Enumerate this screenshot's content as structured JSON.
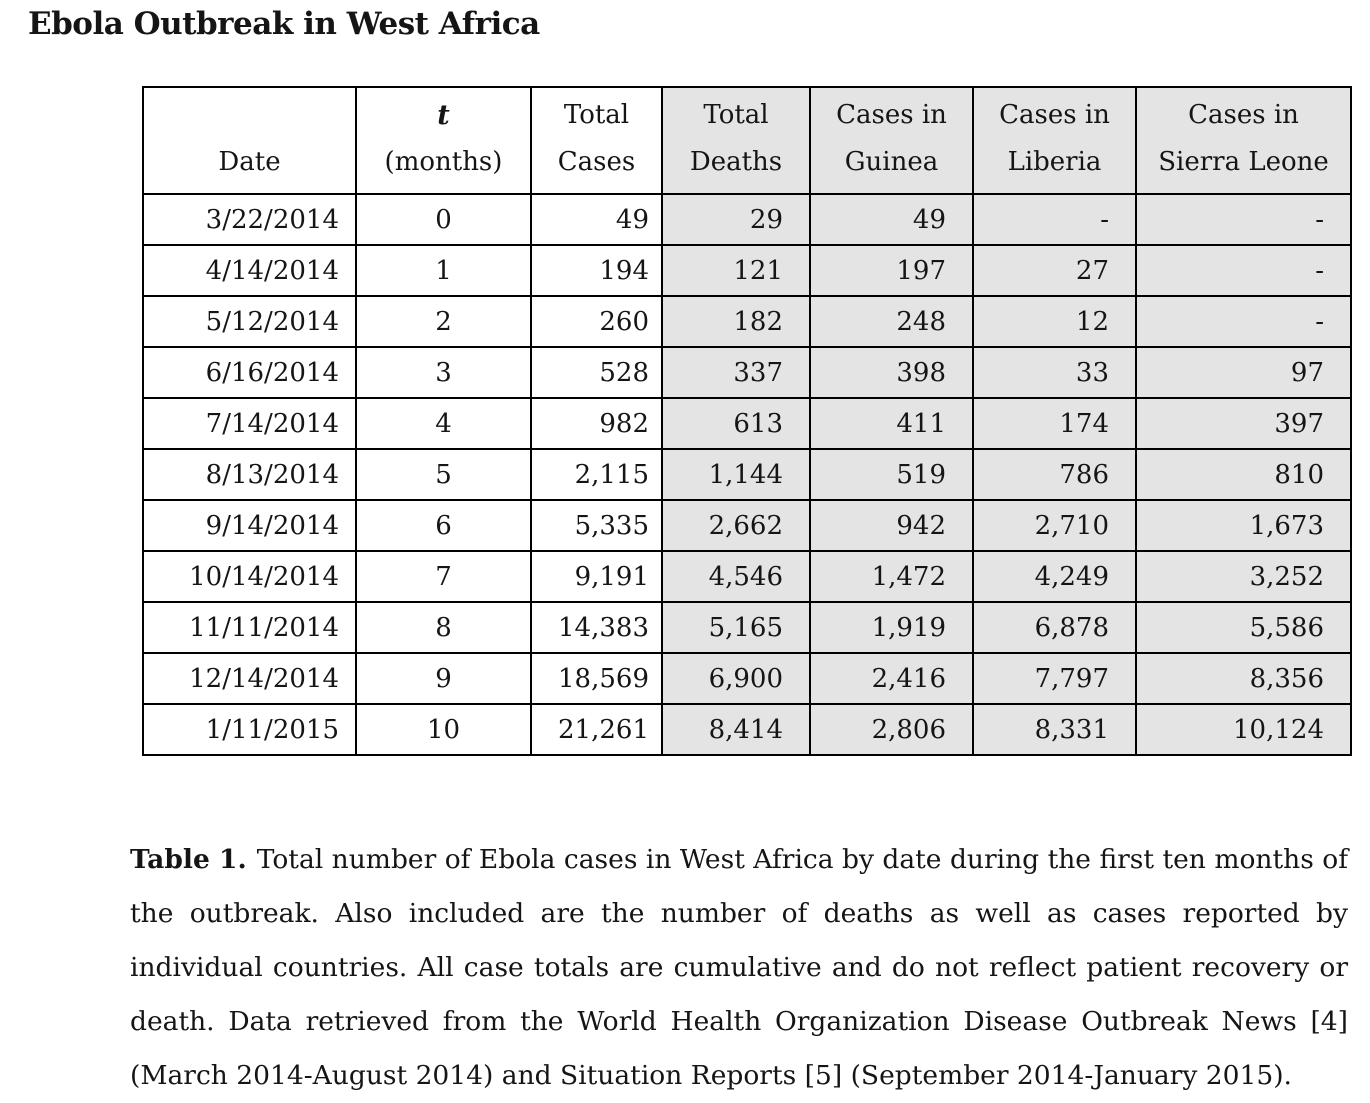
{
  "page": {
    "title": "Ebola Outbreak in West Africa"
  },
  "colors": {
    "shaded_column_bg": "#e4e4e4",
    "border": "#000000",
    "text": "#151515"
  },
  "table": {
    "columns": [
      {
        "line1": "",
        "line2": "Date",
        "shaded": false,
        "italic_line1": false
      },
      {
        "line1": "t",
        "line2": "(months)",
        "shaded": false,
        "italic_line1": true
      },
      {
        "line1": "Total",
        "line2": "Cases",
        "shaded": false,
        "italic_line1": false
      },
      {
        "line1": "Total",
        "line2": "Deaths",
        "shaded": true,
        "italic_line1": false
      },
      {
        "line1": "Cases in",
        "line2": "Guinea",
        "shaded": true,
        "italic_line1": false
      },
      {
        "line1": "Cases in",
        "line2": "Liberia",
        "shaded": true,
        "italic_line1": false
      },
      {
        "line1": "Cases in",
        "line2": "Sierra Leone",
        "shaded": true,
        "italic_line1": false
      }
    ],
    "rows": [
      [
        "3/22/2014",
        "0",
        "49",
        "29",
        "49",
        "-",
        "-"
      ],
      [
        "4/14/2014",
        "1",
        "194",
        "121",
        "197",
        "27",
        "-"
      ],
      [
        "5/12/2014",
        "2",
        "260",
        "182",
        "248",
        "12",
        "-"
      ],
      [
        "6/16/2014",
        "3",
        "528",
        "337",
        "398",
        "33",
        "97"
      ],
      [
        "7/14/2014",
        "4",
        "982",
        "613",
        "411",
        "174",
        "397"
      ],
      [
        "8/13/2014",
        "5",
        "2,115",
        "1,144",
        "519",
        "786",
        "810"
      ],
      [
        "9/14/2014",
        "6",
        "5,335",
        "2,662",
        "942",
        "2,710",
        "1,673"
      ],
      [
        "10/14/2014",
        "7",
        "9,191",
        "4,546",
        "1,472",
        "4,249",
        "3,252"
      ],
      [
        "11/11/2014",
        "8",
        "14,383",
        "5,165",
        "1,919",
        "6,878",
        "5,586"
      ],
      [
        "12/14/2014",
        "9",
        "18,569",
        "6,900",
        "2,416",
        "7,797",
        "8,356"
      ],
      [
        "1/11/2015",
        "10",
        "21,261",
        "8,414",
        "2,806",
        "8,331",
        "10,124"
      ]
    ]
  },
  "caption": {
    "label": "Table 1.",
    "body": "Total number of Ebola cases in West Africa by date during the first ten months of the outbreak. Also included are the number of deaths as well as cases reported by individual countries. All case totals are cumulative and do not reflect patient recovery or death. Data retrieved from the World Health Organization Disease Outbreak News [4] (March 2014-August 2014) and Situation Reports [5] (September 2014-January 2015)."
  }
}
